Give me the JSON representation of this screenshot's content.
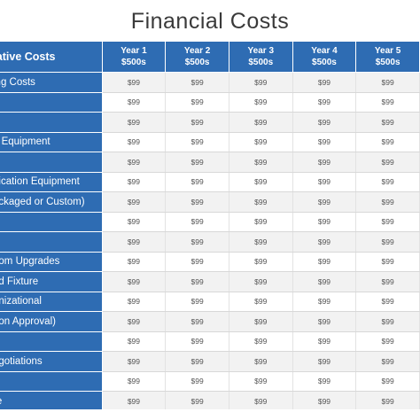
{
  "title": "Financial Costs",
  "table": {
    "header_label": "titative Costs",
    "years": [
      {
        "year": "Year 1",
        "unit": "$500s"
      },
      {
        "year": "Year 2",
        "unit": "$500s"
      },
      {
        "year": "Year 3",
        "unit": "$500s"
      },
      {
        "year": "Year 4",
        "unit": "$500s"
      },
      {
        "year": "Year 5",
        "unit": "$500s"
      }
    ],
    "rows": [
      {
        "label": "ing Costs",
        "values": [
          "$99",
          "$99",
          "$99",
          "$99",
          "$99"
        ]
      },
      {
        "label": "",
        "values": [
          "$99",
          "$99",
          "$99",
          "$99",
          "$99"
        ]
      },
      {
        "label": "",
        "values": [
          "$99",
          "$99",
          "$99",
          "$99",
          "$99"
        ]
      },
      {
        "label": "e Equipment",
        "values": [
          "$99",
          "$99",
          "$99",
          "$99",
          "$99"
        ]
      },
      {
        "label": "",
        "values": [
          "$99",
          "$99",
          "$99",
          "$99",
          "$99"
        ]
      },
      {
        "label": "nication Equipment",
        "values": [
          "$99",
          "$99",
          "$99",
          "$99",
          "$99"
        ]
      },
      {
        "label": "ackaged or Custom)",
        "values": [
          "$99",
          "$99",
          "$99",
          "$99",
          "$99"
        ]
      },
      {
        "label": "",
        "values": [
          "$99",
          "$99",
          "$99",
          "$99",
          "$99"
        ]
      },
      {
        "label": "",
        "values": [
          "$99",
          "$99",
          "$99",
          "$99",
          "$99"
        ]
      },
      {
        "label": "oom Upgrades",
        "values": [
          "$99",
          "$99",
          "$99",
          "$99",
          "$99"
        ]
      },
      {
        "label": "nd Fixture",
        "values": [
          "$99",
          "$99",
          "$99",
          "$99",
          "$99"
        ]
      },
      {
        "label": "anizational",
        "values": [
          "$99",
          "$99",
          "$99",
          "$99",
          "$99"
        ]
      },
      {
        "label": "oon Approval)",
        "values": [
          "$99",
          "$99",
          "$99",
          "$99",
          "$99"
        ]
      },
      {
        "label": "t",
        "values": [
          "$99",
          "$99",
          "$99",
          "$99",
          "$99"
        ]
      },
      {
        "label": "egotiations",
        "values": [
          "$99",
          "$99",
          "$99",
          "$99",
          "$99"
        ]
      },
      {
        "label": "",
        "values": [
          "$99",
          "$99",
          "$99",
          "$99",
          "$99"
        ]
      },
      {
        "label": "re",
        "values": [
          "$99",
          "$99",
          "$99",
          "$99",
          "$99"
        ]
      }
    ]
  }
}
